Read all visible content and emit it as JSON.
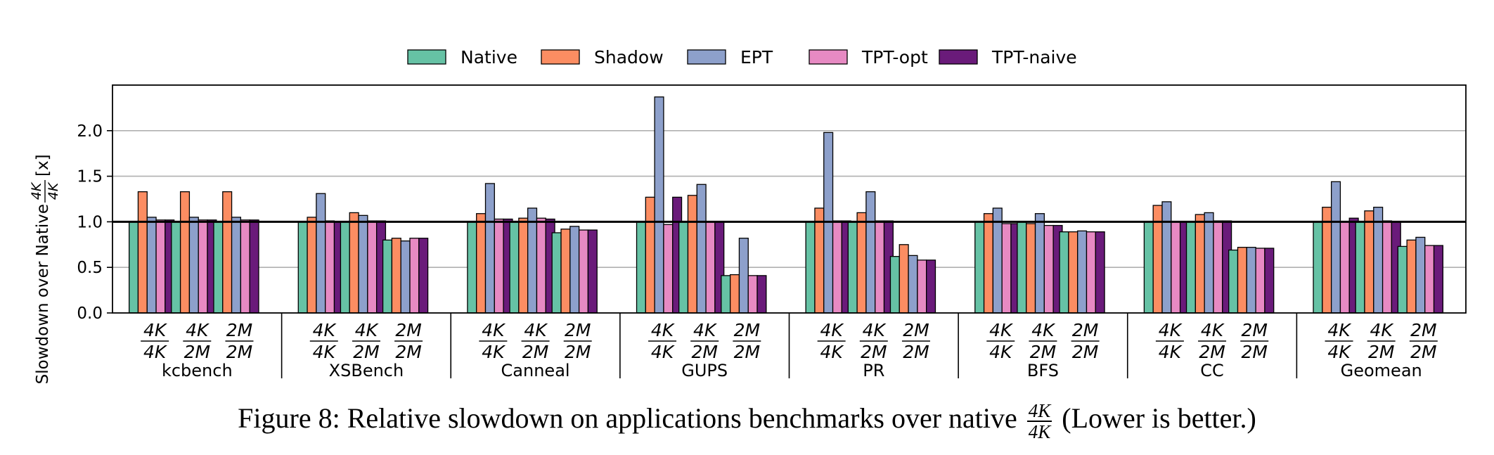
{
  "chart_data": {
    "type": "bar",
    "ylabel_prefix": "Slowdown over Native",
    "ylabel_frac": {
      "num": "4K",
      "den": "4K"
    },
    "ylabel_suffix": "[x]",
    "ylim": [
      0,
      2.5
    ],
    "yticks": [
      "0.0",
      "0.5",
      "1.0",
      "1.5",
      "2.0"
    ],
    "grid": "horizontal",
    "reference_line": 1.0,
    "legend_position": "top-center",
    "series": [
      {
        "name": "Native",
        "color": "#66c2a5"
      },
      {
        "name": "Shadow",
        "color": "#fc8d62"
      },
      {
        "name": "EPT",
        "color": "#8da0cb"
      },
      {
        "name": "TPT-opt",
        "color": "#e78ac3"
      },
      {
        "name": "TPT-naive",
        "color": "#6a1b7a"
      }
    ],
    "groups": [
      {
        "name": "kcbench",
        "configs": [
          {
            "num": "4K",
            "den": "4K",
            "values": [
              1.0,
              1.33,
              1.05,
              1.02,
              1.02
            ]
          },
          {
            "num": "4K",
            "den": "2M",
            "values": [
              1.0,
              1.33,
              1.05,
              1.02,
              1.02
            ]
          },
          {
            "num": "2M",
            "den": "2M",
            "values": [
              1.0,
              1.33,
              1.05,
              1.02,
              1.02
            ]
          }
        ]
      },
      {
        "name": "XSBench",
        "configs": [
          {
            "num": "4K",
            "den": "4K",
            "values": [
              1.0,
              1.05,
              1.31,
              1.01,
              1.0
            ]
          },
          {
            "num": "4K",
            "den": "2M",
            "values": [
              1.0,
              1.1,
              1.07,
              1.01,
              1.01
            ]
          },
          {
            "num": "2M",
            "den": "2M",
            "values": [
              0.8,
              0.82,
              0.79,
              0.82,
              0.82
            ]
          }
        ]
      },
      {
        "name": "Canneal",
        "configs": [
          {
            "num": "4K",
            "den": "4K",
            "values": [
              1.0,
              1.09,
              1.42,
              1.03,
              1.03
            ]
          },
          {
            "num": "4K",
            "den": "2M",
            "values": [
              1.0,
              1.04,
              1.15,
              1.04,
              1.03
            ]
          },
          {
            "num": "2M",
            "den": "2M",
            "values": [
              0.88,
              0.92,
              0.95,
              0.91,
              0.91
            ]
          }
        ]
      },
      {
        "name": "GUPS",
        "configs": [
          {
            "num": "4K",
            "den": "4K",
            "values": [
              1.0,
              1.27,
              2.37,
              0.97,
              1.27
            ]
          },
          {
            "num": "4K",
            "den": "2M",
            "values": [
              1.0,
              1.29,
              1.41,
              1.0,
              1.0
            ]
          },
          {
            "num": "2M",
            "den": "2M",
            "values": [
              0.41,
              0.42,
              0.82,
              0.41,
              0.41
            ]
          }
        ]
      },
      {
        "name": "PR",
        "configs": [
          {
            "num": "4K",
            "den": "4K",
            "values": [
              1.0,
              1.15,
              1.98,
              1.01,
              1.01
            ]
          },
          {
            "num": "4K",
            "den": "2M",
            "values": [
              1.0,
              1.1,
              1.33,
              1.01,
              1.01
            ]
          },
          {
            "num": "2M",
            "den": "2M",
            "values": [
              0.62,
              0.75,
              0.63,
              0.58,
              0.58
            ]
          }
        ]
      },
      {
        "name": "BFS",
        "configs": [
          {
            "num": "4K",
            "den": "4K",
            "values": [
              1.0,
              1.09,
              1.15,
              0.98,
              0.98
            ]
          },
          {
            "num": "4K",
            "den": "2M",
            "values": [
              1.0,
              0.98,
              1.09,
              0.96,
              0.96
            ]
          },
          {
            "num": "2M",
            "den": "2M",
            "values": [
              0.89,
              0.89,
              0.9,
              0.89,
              0.89
            ]
          }
        ]
      },
      {
        "name": "CC",
        "configs": [
          {
            "num": "4K",
            "den": "4K",
            "values": [
              1.0,
              1.18,
              1.22,
              1.0,
              1.0
            ]
          },
          {
            "num": "4K",
            "den": "2M",
            "values": [
              1.0,
              1.08,
              1.1,
              1.01,
              1.01
            ]
          },
          {
            "num": "2M",
            "den": "2M",
            "values": [
              0.69,
              0.72,
              0.72,
              0.71,
              0.71
            ]
          }
        ]
      },
      {
        "name": "Geomean",
        "configs": [
          {
            "num": "4K",
            "den": "4K",
            "values": [
              1.0,
              1.16,
              1.44,
              1.0,
              1.04
            ]
          },
          {
            "num": "4K",
            "den": "2M",
            "values": [
              1.0,
              1.12,
              1.16,
              1.01,
              1.0
            ]
          },
          {
            "num": "2M",
            "den": "2M",
            "values": [
              0.73,
              0.8,
              0.83,
              0.74,
              0.74
            ]
          }
        ]
      }
    ]
  },
  "caption": {
    "prefix": "Figure 8: Relative slowdown on applications benchmarks over native",
    "frac_num": "4K",
    "frac_den": "4K",
    "suffix": "(Lower is better.)"
  }
}
